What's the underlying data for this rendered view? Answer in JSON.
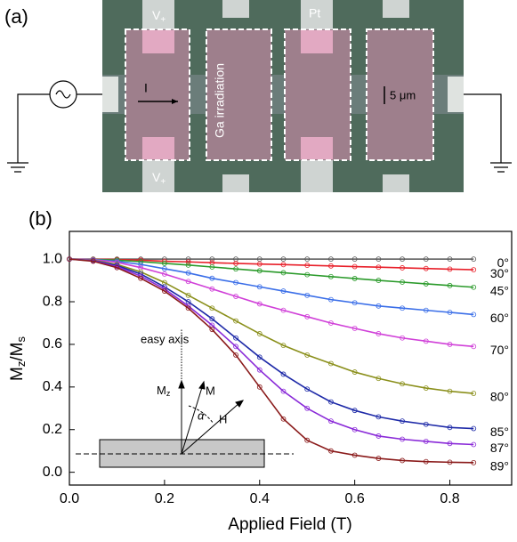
{
  "panel_a": {
    "label": "(a)",
    "v_top": {
      "main": "V",
      "sub": "+"
    },
    "v_bottom": {
      "main": "V",
      "sub": "+"
    },
    "pt": "Pt",
    "ga": "Ga irradiation",
    "current": "I",
    "scale": "5 μm"
  },
  "chart_data": {
    "type": "line",
    "panel_label": "(b)",
    "xlabel": "Applied Field (T)",
    "ylabel": [
      "M",
      "z",
      "/M",
      "s"
    ],
    "xlim": [
      0,
      0.93
    ],
    "ylim": [
      -0.06,
      1.13
    ],
    "xticks": [
      {
        "value": 0,
        "label": "0.0"
      },
      0.2,
      0.4,
      0.6,
      0.8
    ],
    "yticks": [
      {
        "value": 0,
        "label": "0.0"
      },
      0.2,
      0.4,
      0.6,
      0.8,
      {
        "value": 1,
        "label": "1.0"
      }
    ],
    "x": [
      0,
      0.05,
      0.1,
      0.15,
      0.2,
      0.25,
      0.3,
      0.35,
      0.4,
      0.45,
      0.5,
      0.55,
      0.6,
      0.65,
      0.7,
      0.75,
      0.8,
      0.85
    ],
    "series": [
      {
        "name": "0°",
        "color": "#555555",
        "values": [
          1,
          1,
          1,
          1,
          1,
          1,
          1,
          1,
          1,
          1,
          1,
          1,
          1,
          1,
          1,
          1,
          1,
          1
        ]
      },
      {
        "name": "30°",
        "color": "#e8202a",
        "values": [
          1,
          1,
          0.998,
          0.995,
          0.99,
          0.987,
          0.983,
          0.98,
          0.977,
          0.974,
          0.971,
          0.968,
          0.965,
          0.962,
          0.959,
          0.956,
          0.953,
          0.95
        ]
      },
      {
        "name": "45°",
        "color": "#2a9a2a",
        "values": [
          1,
          0.999,
          0.995,
          0.988,
          0.98,
          0.972,
          0.963,
          0.954,
          0.945,
          0.936,
          0.927,
          0.918,
          0.909,
          0.9,
          0.892,
          0.884,
          0.876,
          0.868
        ]
      },
      {
        "name": "60°",
        "color": "#3a6ee8",
        "values": [
          1,
          0.998,
          0.99,
          0.975,
          0.955,
          0.935,
          0.91,
          0.89,
          0.87,
          0.85,
          0.83,
          0.81,
          0.795,
          0.78,
          0.77,
          0.76,
          0.75,
          0.74
        ]
      },
      {
        "name": "70°",
        "color": "#d040d8",
        "values": [
          1,
          0.997,
          0.985,
          0.96,
          0.93,
          0.895,
          0.86,
          0.825,
          0.79,
          0.76,
          0.73,
          0.7,
          0.675,
          0.65,
          0.63,
          0.615,
          0.6,
          0.59
        ]
      },
      {
        "name": "80°",
        "color": "#8a8f1a",
        "values": [
          1,
          0.995,
          0.975,
          0.94,
          0.89,
          0.83,
          0.77,
          0.71,
          0.65,
          0.595,
          0.55,
          0.51,
          0.47,
          0.44,
          0.415,
          0.395,
          0.38,
          0.37
        ]
      },
      {
        "name": "85°",
        "color": "#1e2aa8",
        "values": [
          1,
          0.993,
          0.97,
          0.93,
          0.87,
          0.8,
          0.72,
          0.63,
          0.54,
          0.46,
          0.39,
          0.33,
          0.29,
          0.26,
          0.24,
          0.225,
          0.21,
          0.205
        ]
      },
      {
        "name": "87°",
        "color": "#8a2ad8",
        "values": [
          1,
          0.992,
          0.965,
          0.92,
          0.86,
          0.78,
          0.69,
          0.59,
          0.48,
          0.38,
          0.3,
          0.24,
          0.2,
          0.17,
          0.155,
          0.145,
          0.135,
          0.13
        ]
      },
      {
        "name": "89°",
        "color": "#8a1a1a",
        "values": [
          1,
          0.99,
          0.96,
          0.91,
          0.85,
          0.77,
          0.67,
          0.55,
          0.4,
          0.25,
          0.15,
          0.1,
          0.08,
          0.065,
          0.055,
          0.05,
          0.047,
          0.045
        ]
      }
    ],
    "inset": {
      "easy_axis": "easy axis",
      "mz": "M",
      "mz_sub": "z",
      "m": "M",
      "h": "H",
      "alpha": "α"
    }
  }
}
